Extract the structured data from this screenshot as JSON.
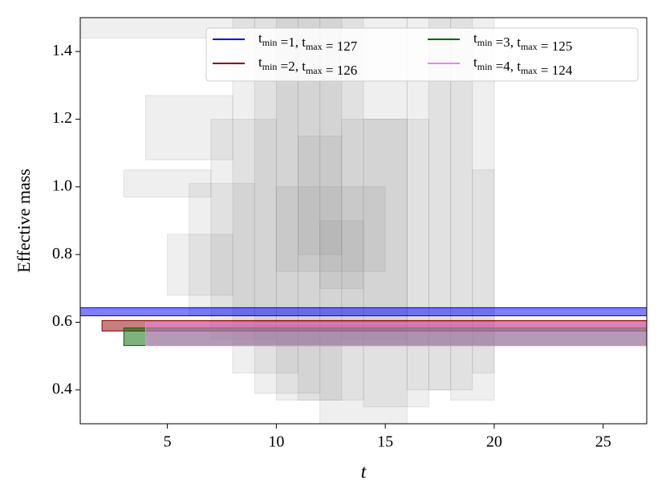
{
  "chart_data": {
    "type": "band",
    "xlabel": "t",
    "ylabel": "Effective mass",
    "xlim": [
      1,
      27
    ],
    "ylim": [
      0.3,
      1.5
    ],
    "xticks": [
      5,
      10,
      15,
      20,
      25
    ],
    "yticks": [
      0.4,
      0.6,
      0.8,
      {
        "value": 1,
        "label": "1.0"
      },
      1.2,
      1.4
    ],
    "boxes": [
      {
        "x": [
          1,
          9
        ],
        "y": [
          1.44,
          1.5
        ]
      },
      {
        "x": [
          4,
          8
        ],
        "y": [
          1.08,
          1.27
        ]
      },
      {
        "x": [
          3,
          7
        ],
        "y": [
          0.97,
          1.05
        ]
      },
      {
        "x": [
          5,
          8
        ],
        "y": [
          0.68,
          0.86
        ]
      },
      {
        "x": [
          6,
          9
        ],
        "y": [
          0.62,
          1.01
        ]
      },
      {
        "x": [
          7,
          10
        ],
        "y": [
          0.55,
          1.2
        ]
      },
      {
        "x": [
          8,
          11
        ],
        "y": [
          0.45,
          1.5
        ]
      },
      {
        "x": [
          9,
          12
        ],
        "y": [
          0.39,
          1.5
        ]
      },
      {
        "x": [
          10,
          13
        ],
        "y": [
          0.37,
          1.5
        ]
      },
      {
        "x": [
          11,
          14
        ],
        "y": [
          0.37,
          1.5
        ]
      },
      {
        "x": [
          12,
          16
        ],
        "y": [
          0.3,
          1.5
        ]
      },
      {
        "x": [
          13,
          16
        ],
        "y": [
          0.55,
          1.2
        ]
      },
      {
        "x": [
          14,
          17
        ],
        "y": [
          0.35,
          1.2
        ]
      },
      {
        "x": [
          16,
          18
        ],
        "y": [
          0.4,
          1.5
        ]
      },
      {
        "x": [
          17,
          19
        ],
        "y": [
          0.4,
          1.5
        ]
      },
      {
        "x": [
          18,
          20
        ],
        "y": [
          0.37,
          1.5
        ]
      },
      {
        "x": [
          19,
          20
        ],
        "y": [
          0.45,
          1.05
        ]
      },
      {
        "x": [
          12,
          14
        ],
        "y": [
          0.7,
          0.9
        ]
      },
      {
        "x": [
          10,
          15
        ],
        "y": [
          0.75,
          1.0
        ]
      },
      {
        "x": [
          11,
          13
        ],
        "y": [
          0.8,
          1.15
        ]
      }
    ],
    "box_color": "#808080",
    "series": [
      {
        "name": "tmin =1, tmax = 127",
        "color": "#0000ff",
        "x": [
          1,
          27
        ],
        "y": [
          0.619,
          0.643
        ]
      },
      {
        "name": "tmin =2, tmax = 126",
        "color": "#8b0000",
        "x": [
          2,
          27
        ],
        "y": [
          0.574,
          0.605
        ]
      },
      {
        "name": "tmin =3, tmax = 125",
        "color": "#006400",
        "x": [
          3,
          27
        ],
        "y": [
          0.531,
          0.583
        ]
      },
      {
        "name": "tmin =4, tmax = 124",
        "color": "#ee82ee",
        "x": [
          4,
          27
        ],
        "y": [
          0.531,
          0.598
        ]
      }
    ],
    "legend": "upper right"
  }
}
